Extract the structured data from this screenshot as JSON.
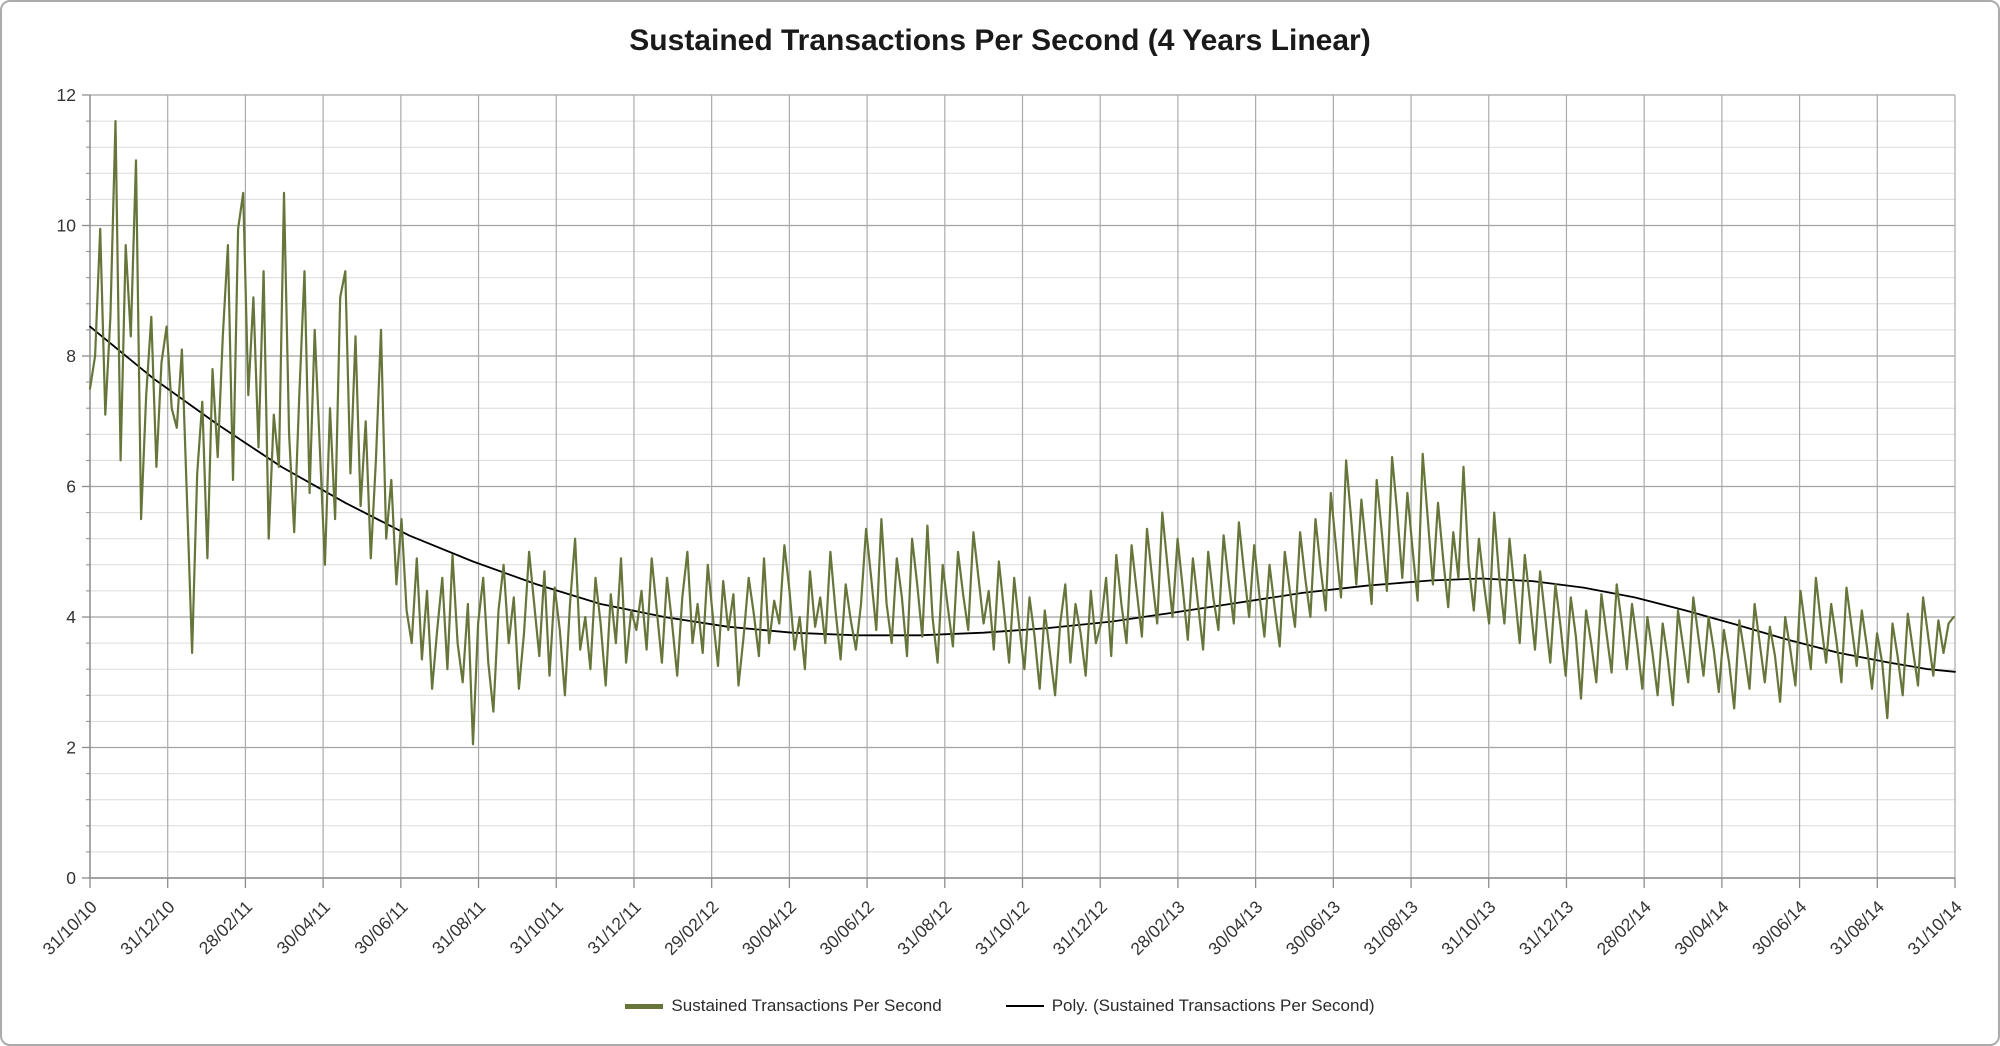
{
  "chart_data": {
    "type": "line",
    "title": "Sustained Transactions Per Second (4 Years Linear)",
    "x_axis": {
      "start_date": "31/10/10",
      "end_date": "31/10/14",
      "span_days": 1461,
      "tick_interval": "2 months",
      "tick_labels": [
        "31/10/10",
        "31/12/10",
        "28/02/11",
        "30/04/11",
        "30/06/11",
        "31/08/11",
        "31/10/11",
        "31/12/11",
        "29/02/12",
        "30/04/12",
        "30/06/12",
        "31/08/12",
        "31/10/12",
        "31/12/12",
        "28/02/13",
        "30/04/13",
        "30/06/13",
        "31/08/13",
        "31/10/13",
        "31/12/13",
        "28/02/14",
        "30/04/14",
        "30/06/14",
        "31/08/14",
        "31/10/14"
      ]
    },
    "y_axis": {
      "min": 0,
      "max": 12,
      "major_unit": 2,
      "minor_unit": 0.4,
      "tick_labels": [
        "0",
        "2",
        "4",
        "6",
        "8",
        "10",
        "12"
      ]
    },
    "grid": {
      "horizontal_major": true,
      "horizontal_minor": true,
      "vertical_major": true
    },
    "legend_position": "bottom-center",
    "colors": {
      "series_green": "#66753A",
      "trend_black": "#000000",
      "grid_major": "#a3a3a3",
      "grid_minor": "#dcdcdc",
      "grid_vertical": "#ababab",
      "axis": "#8c8c8c",
      "tick_text": "#333333",
      "title_text": "#1a1a1a"
    },
    "series": [
      {
        "name": "Sustained Transactions Per Second",
        "color": "#66753A",
        "line_width": 2.2,
        "sample_interval_days": 4,
        "start_day": 0,
        "values": [
          7.5,
          8.0,
          9.95,
          7.1,
          8.6,
          11.6,
          6.4,
          9.7,
          8.3,
          11.0,
          5.5,
          7.4,
          8.6,
          6.3,
          7.9,
          8.45,
          7.2,
          6.9,
          8.1,
          5.8,
          3.45,
          6.2,
          7.3,
          4.9,
          7.8,
          6.45,
          8.3,
          9.7,
          6.1,
          9.95,
          10.5,
          7.4,
          8.9,
          6.6,
          9.3,
          5.2,
          7.1,
          6.3,
          10.5,
          6.8,
          5.3,
          7.4,
          9.3,
          5.9,
          8.4,
          6.6,
          4.8,
          7.2,
          5.5,
          8.9,
          9.3,
          6.2,
          8.3,
          5.7,
          7.0,
          4.9,
          6.4,
          8.4,
          5.2,
          6.1,
          4.5,
          5.5,
          4.1,
          3.6,
          4.9,
          3.35,
          4.4,
          2.9,
          3.8,
          4.6,
          3.2,
          4.95,
          3.6,
          3.0,
          4.2,
          2.05,
          3.9,
          4.6,
          3.3,
          2.55,
          4.1,
          4.8,
          3.6,
          4.3,
          2.9,
          3.75,
          5.0,
          4.2,
          3.4,
          4.7,
          3.1,
          4.45,
          3.8,
          2.8,
          4.2,
          5.2,
          3.5,
          4.0,
          3.2,
          4.6,
          3.9,
          2.95,
          4.35,
          3.6,
          4.9,
          3.3,
          4.1,
          3.8,
          4.4,
          3.5,
          4.9,
          4.1,
          3.3,
          4.6,
          3.9,
          3.1,
          4.3,
          5.0,
          3.6,
          4.2,
          3.45,
          4.8,
          4.0,
          3.25,
          4.55,
          3.8,
          4.35,
          2.95,
          3.7,
          4.6,
          4.05,
          3.4,
          4.9,
          3.6,
          4.25,
          3.9,
          5.1,
          4.4,
          3.5,
          4.0,
          3.2,
          4.7,
          3.85,
          4.3,
          3.6,
          5.0,
          4.1,
          3.35,
          4.5,
          3.95,
          3.5,
          4.2,
          5.35,
          4.6,
          3.8,
          5.5,
          4.2,
          3.6,
          4.9,
          4.3,
          3.4,
          5.2,
          4.5,
          3.7,
          5.4,
          4.0,
          3.3,
          4.8,
          4.15,
          3.55,
          5.0,
          4.35,
          3.8,
          5.3,
          4.6,
          3.9,
          4.4,
          3.5,
          4.85,
          4.1,
          3.3,
          4.6,
          3.85,
          3.2,
          4.3,
          3.7,
          2.9,
          4.1,
          3.45,
          2.8,
          3.9,
          4.5,
          3.3,
          4.2,
          3.75,
          3.1,
          4.4,
          3.6,
          3.9,
          4.6,
          3.4,
          4.95,
          4.2,
          3.6,
          5.1,
          4.4,
          3.7,
          5.35,
          4.6,
          3.9,
          5.6,
          4.8,
          4.0,
          5.2,
          4.45,
          3.65,
          4.9,
          4.2,
          3.5,
          5.0,
          4.3,
          3.8,
          5.25,
          4.55,
          3.9,
          5.45,
          4.7,
          4.0,
          5.1,
          4.35,
          3.7,
          4.8,
          4.15,
          3.55,
          5.0,
          4.4,
          3.85,
          5.3,
          4.6,
          4.0,
          5.5,
          4.75,
          4.1,
          5.9,
          5.1,
          4.3,
          6.4,
          5.5,
          4.5,
          5.8,
          5.0,
          4.2,
          6.1,
          5.3,
          4.4,
          6.45,
          5.6,
          4.6,
          5.9,
          5.05,
          4.25,
          6.5,
          5.5,
          4.5,
          5.75,
          4.9,
          4.15,
          5.3,
          4.6,
          6.3,
          4.8,
          4.1,
          5.2,
          4.5,
          3.9,
          5.6,
          4.6,
          3.9,
          5.2,
          4.4,
          3.6,
          4.95,
          4.25,
          3.5,
          4.7,
          4.0,
          3.3,
          4.5,
          3.85,
          3.1,
          4.3,
          3.7,
          2.75,
          4.1,
          3.6,
          3.0,
          4.35,
          3.75,
          3.15,
          4.5,
          3.9,
          3.2,
          4.2,
          3.6,
          2.9,
          4.0,
          3.45,
          2.8,
          3.9,
          3.35,
          2.65,
          4.1,
          3.55,
          3.0,
          4.3,
          3.7,
          3.1,
          4.0,
          3.5,
          2.85,
          3.8,
          3.3,
          2.6,
          3.95,
          3.45,
          2.9,
          4.2,
          3.6,
          3.0,
          3.85,
          3.4,
          2.7,
          4.0,
          3.5,
          2.95,
          4.4,
          3.8,
          3.2,
          4.6,
          3.9,
          3.3,
          4.2,
          3.65,
          3.0,
          4.45,
          3.85,
          3.25,
          4.1,
          3.55,
          2.9,
          3.75,
          3.3,
          2.45,
          3.9,
          3.4,
          2.8,
          4.05,
          3.5,
          2.95,
          4.3,
          3.7,
          3.1,
          3.95,
          3.45,
          3.9,
          4.0
        ]
      },
      {
        "name": "Poly. (Sustained Transactions Per Second)",
        "color": "#000000",
        "line_width": 1.8,
        "trend_type": "polynomial",
        "anchors": [
          [
            0,
            8.45
          ],
          [
            50,
            7.65
          ],
          [
            100,
            6.95
          ],
          [
            150,
            6.3
          ],
          [
            200,
            5.75
          ],
          [
            250,
            5.25
          ],
          [
            300,
            4.85
          ],
          [
            350,
            4.5
          ],
          [
            400,
            4.2
          ],
          [
            450,
            4.0
          ],
          [
            500,
            3.85
          ],
          [
            550,
            3.76
          ],
          [
            600,
            3.72
          ],
          [
            650,
            3.72
          ],
          [
            700,
            3.76
          ],
          [
            750,
            3.83
          ],
          [
            800,
            3.93
          ],
          [
            850,
            4.07
          ],
          [
            900,
            4.22
          ],
          [
            950,
            4.37
          ],
          [
            1000,
            4.48
          ],
          [
            1050,
            4.56
          ],
          [
            1090,
            4.59
          ],
          [
            1130,
            4.55
          ],
          [
            1170,
            4.45
          ],
          [
            1210,
            4.3
          ],
          [
            1250,
            4.1
          ],
          [
            1290,
            3.88
          ],
          [
            1330,
            3.65
          ],
          [
            1370,
            3.45
          ],
          [
            1410,
            3.3
          ],
          [
            1440,
            3.2
          ],
          [
            1461,
            3.16
          ]
        ]
      }
    ]
  }
}
